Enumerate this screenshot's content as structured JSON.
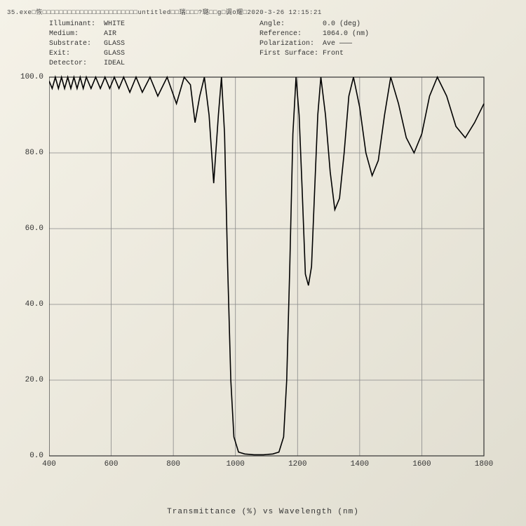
{
  "header": {
    "text": "35.exe□恢□□□□□□□□□□□□□□□□□□□□□□□untitled□□瑞□□□?璐□□g□调o耀□2020-3-26 12:15:21"
  },
  "meta_left": [
    {
      "label": "Illuminant:",
      "value": "WHITE"
    },
    {
      "label": "Medium:",
      "value": "AIR"
    },
    {
      "label": "Substrate:",
      "value": "GLASS"
    },
    {
      "label": "Exit:",
      "value": "GLASS"
    },
    {
      "label": "Detector:",
      "value": "IDEAL"
    }
  ],
  "meta_right": [
    {
      "label": "Angle:",
      "value": "0.0 (deg)"
    },
    {
      "label": "Reference:",
      "value": "1064.0 (nm)"
    },
    {
      "label": "Polarization:",
      "value": "Ave ———"
    },
    {
      "label": "First Surface:",
      "value": "Front"
    }
  ],
  "chart": {
    "type": "line",
    "x_title": "Transmittance (%)  vs  Wavelength (nm)",
    "xlim": [
      400,
      1800
    ],
    "ylim": [
      0,
      100
    ],
    "xticks": [
      400,
      600,
      800,
      1000,
      1200,
      1400,
      1600,
      1800
    ],
    "yticks": [
      0,
      20,
      40,
      60,
      80,
      100
    ],
    "ytick_labels": [
      "0.0",
      "20.0",
      "40.0",
      "60.0",
      "80.0",
      "100.0"
    ],
    "background_color": "transparent",
    "grid_color": "#888888",
    "axis_color": "#333333",
    "line_color": "#000000",
    "line_width": 1.6,
    "label_fontsize": 11,
    "data": [
      [
        400,
        99
      ],
      [
        410,
        97
      ],
      [
        420,
        100
      ],
      [
        430,
        97
      ],
      [
        440,
        100
      ],
      [
        450,
        97
      ],
      [
        460,
        100
      ],
      [
        470,
        97
      ],
      [
        480,
        100
      ],
      [
        490,
        97
      ],
      [
        500,
        100
      ],
      [
        510,
        97
      ],
      [
        520,
        100
      ],
      [
        535,
        97
      ],
      [
        550,
        100
      ],
      [
        565,
        97
      ],
      [
        580,
        100
      ],
      [
        595,
        97
      ],
      [
        610,
        100
      ],
      [
        625,
        97
      ],
      [
        640,
        100
      ],
      [
        660,
        96
      ],
      [
        680,
        100
      ],
      [
        700,
        96
      ],
      [
        725,
        100
      ],
      [
        750,
        95
      ],
      [
        780,
        100
      ],
      [
        810,
        93
      ],
      [
        835,
        100
      ],
      [
        855,
        98
      ],
      [
        870,
        88
      ],
      [
        885,
        95
      ],
      [
        900,
        100
      ],
      [
        915,
        90
      ],
      [
        930,
        72
      ],
      [
        945,
        90
      ],
      [
        955,
        100
      ],
      [
        965,
        85
      ],
      [
        975,
        50
      ],
      [
        985,
        20
      ],
      [
        995,
        5
      ],
      [
        1010,
        1
      ],
      [
        1030,
        0.5
      ],
      [
        1060,
        0.3
      ],
      [
        1090,
        0.3
      ],
      [
        1120,
        0.5
      ],
      [
        1140,
        1
      ],
      [
        1155,
        5
      ],
      [
        1165,
        20
      ],
      [
        1175,
        50
      ],
      [
        1185,
        85
      ],
      [
        1195,
        100
      ],
      [
        1205,
        90
      ],
      [
        1215,
        70
      ],
      [
        1225,
        48
      ],
      [
        1235,
        45
      ],
      [
        1245,
        50
      ],
      [
        1255,
        70
      ],
      [
        1265,
        90
      ],
      [
        1275,
        100
      ],
      [
        1290,
        90
      ],
      [
        1305,
        75
      ],
      [
        1320,
        65
      ],
      [
        1335,
        68
      ],
      [
        1350,
        80
      ],
      [
        1365,
        95
      ],
      [
        1380,
        100
      ],
      [
        1400,
        92
      ],
      [
        1420,
        80
      ],
      [
        1440,
        74
      ],
      [
        1460,
        78
      ],
      [
        1480,
        90
      ],
      [
        1500,
        100
      ],
      [
        1525,
        93
      ],
      [
        1550,
        84
      ],
      [
        1575,
        80
      ],
      [
        1600,
        85
      ],
      [
        1625,
        95
      ],
      [
        1650,
        100
      ],
      [
        1680,
        95
      ],
      [
        1710,
        87
      ],
      [
        1740,
        84
      ],
      [
        1770,
        88
      ],
      [
        1800,
        93
      ]
    ]
  }
}
